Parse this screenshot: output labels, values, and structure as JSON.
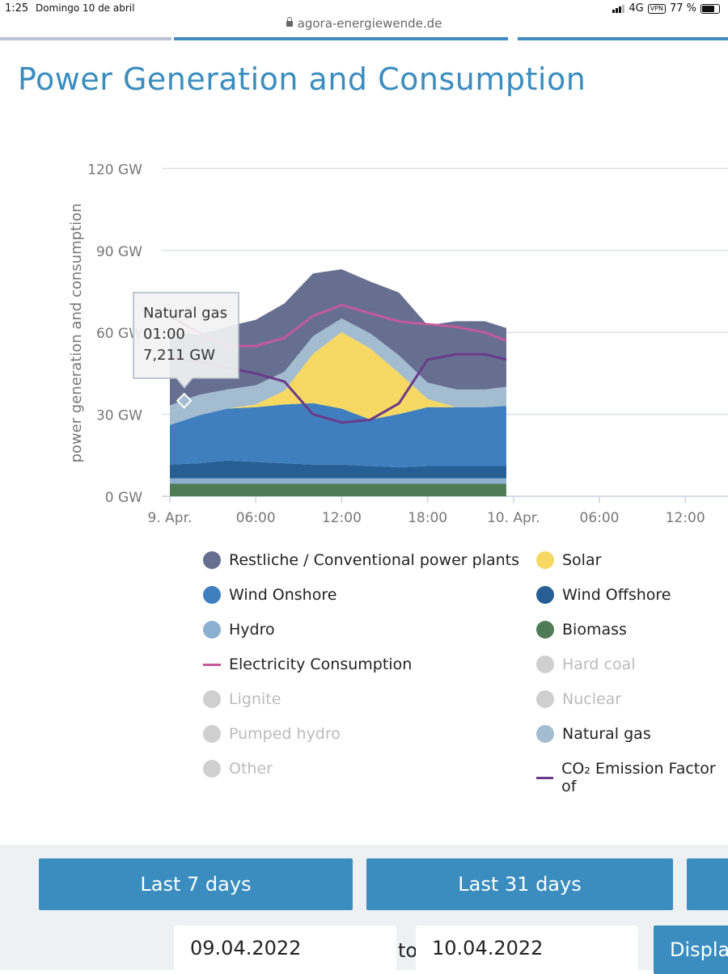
{
  "status_bar": {
    "time": "1:25",
    "date": "Domingo 10 de abril",
    "network": "4G",
    "vpn": "VPN",
    "battery": "77 %"
  },
  "browser": {
    "url": "agora-energiewende.de"
  },
  "page": {
    "title": "Power Generation and Consumption"
  },
  "chart_data": {
    "type": "area",
    "ylabel": "power generation and consumption",
    "y_ticks": [
      "0 GW",
      "30 GW",
      "60 GW",
      "90 GW",
      "120 GW"
    ],
    "ylim": [
      0,
      120
    ],
    "x_ticks": [
      "9. Apr.",
      "06:00",
      "12:00",
      "18:00",
      "10. Apr.",
      "06:00",
      "12:00"
    ],
    "x_tick_hours": [
      0,
      6,
      12,
      18,
      24,
      30,
      36
    ],
    "x_hours": [
      0,
      2,
      4,
      6,
      8,
      10,
      12,
      14,
      16,
      18,
      20,
      22,
      23.5
    ],
    "series": [
      {
        "name": "Biomass",
        "color": "#4f7c55",
        "values": [
          4.6,
          4.6,
          4.6,
          4.6,
          4.6,
          4.6,
          4.6,
          4.6,
          4.6,
          4.6,
          4.6,
          4.6,
          4.6
        ]
      },
      {
        "name": "Hydro",
        "color": "#8cb0d0",
        "values": [
          2,
          2,
          2,
          2,
          2,
          2,
          2,
          2,
          2,
          2,
          2,
          2,
          2
        ]
      },
      {
        "name": "Wind Offshore",
        "color": "#255f94",
        "values": [
          5,
          5.5,
          6.5,
          6,
          5.5,
          5,
          5,
          4.5,
          4,
          4.5,
          4.5,
          4.5,
          4.5
        ]
      },
      {
        "name": "Wind Onshore",
        "color": "#3f7fbf",
        "values": [
          14.5,
          17.5,
          19,
          20,
          21.5,
          22.5,
          20.5,
          17,
          19.5,
          21.5,
          21.5,
          21.5,
          22
        ]
      },
      {
        "name": "Solar",
        "color": "#f6d862",
        "values": [
          0,
          0,
          0,
          1,
          5,
          18,
          28,
          26,
          15,
          3,
          0,
          0,
          0
        ]
      },
      {
        "name": "Natural gas",
        "color": "#a3bcd0",
        "values": [
          7.2,
          7.5,
          7,
          7,
          7,
          6.5,
          5,
          5.5,
          6.5,
          6,
          6.5,
          6.5,
          7
        ]
      },
      {
        "name": "Restliche / Conventional power plants",
        "color": "#676f91",
        "values": [
          27,
          22,
          23,
          24,
          25,
          23,
          18,
          19,
          23,
          21,
          25,
          25,
          21.5
        ]
      }
    ],
    "lines": [
      {
        "name": "Electricity Consumption",
        "color": "#c45a9c",
        "values": [
          66,
          60,
          55,
          55,
          58,
          66,
          70,
          67,
          64,
          63,
          62,
          60,
          57
        ]
      },
      {
        "name": "CO₂ Emission Factor",
        "color": "#6a3a8a",
        "values": [
          51,
          49,
          47,
          45,
          42,
          30,
          27,
          28,
          34,
          50,
          52,
          52,
          50
        ]
      }
    ],
    "tooltip": {
      "series": "Natural gas",
      "time": "01:00",
      "value": "7,211 GW",
      "x_hour": 1.0,
      "y_value": 35
    }
  },
  "legend": [
    {
      "label": "Restliche / Conventional power plants",
      "color": "#676f91",
      "kind": "dot",
      "active": true
    },
    {
      "label": "Solar",
      "color": "#f6d862",
      "kind": "dot",
      "active": true
    },
    {
      "label": "Wind Onshore",
      "color": "#3f7fbf",
      "kind": "dot",
      "active": true
    },
    {
      "label": "Wind Offshore",
      "color": "#255f94",
      "kind": "dot",
      "active": true
    },
    {
      "label": "Hydro",
      "color": "#8cb0d0",
      "kind": "dot",
      "active": true
    },
    {
      "label": "Biomass",
      "color": "#4f7c55",
      "kind": "dot",
      "active": true
    },
    {
      "label": "Electricity Consumption",
      "color": "#c45a9c",
      "kind": "line",
      "active": true
    },
    {
      "label": "Hard coal",
      "color": "#cfcfcf",
      "kind": "dot",
      "active": false
    },
    {
      "label": "Lignite",
      "color": "#cfcfcf",
      "kind": "dot",
      "active": false
    },
    {
      "label": "Nuclear",
      "color": "#cfcfcf",
      "kind": "dot",
      "active": false
    },
    {
      "label": "Pumped hydro",
      "color": "#cfcfcf",
      "kind": "dot",
      "active": false
    },
    {
      "label": "Natural gas",
      "color": "#a3bcd0",
      "kind": "dot",
      "active": true
    },
    {
      "label": "Other",
      "color": "#cfcfcf",
      "kind": "dot",
      "active": false
    },
    {
      "label": "CO₂ Emission Factor of",
      "color": "#6a3a8a",
      "kind": "line",
      "active": true
    }
  ],
  "controls": {
    "last7": "Last 7 days",
    "last31": "Last 31 days",
    "from_date": "09.04.2022",
    "to_label": "to",
    "to_date": "10.04.2022",
    "display": "Display"
  }
}
